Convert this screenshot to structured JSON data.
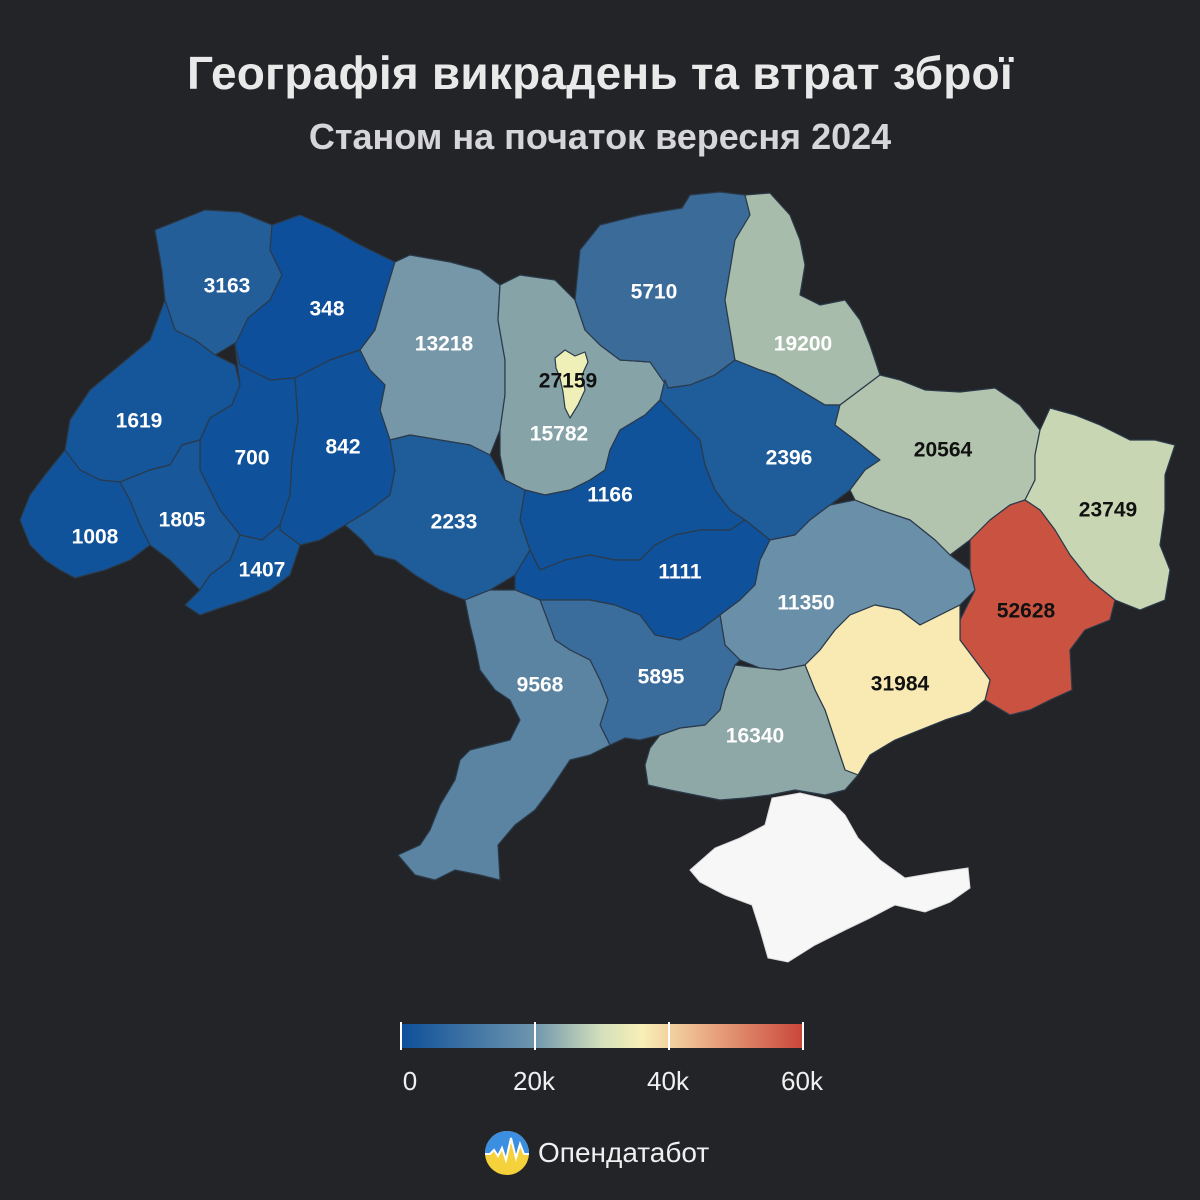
{
  "header": {
    "title": "Географія викрадень та втрат зброї",
    "subtitle": "Станом на початок вересня 2024"
  },
  "regions": [
    {
      "id": "volyn",
      "value": 3163,
      "label": "3163",
      "color": "#245e99"
    },
    {
      "id": "rivne",
      "value": 348,
      "label": "348",
      "color": "#0d4f9a"
    },
    {
      "id": "zhytomyr",
      "value": 13218,
      "label": "13218",
      "color": "#7597a8"
    },
    {
      "id": "kyiv-oblast",
      "value": 15782,
      "label": "15782",
      "color": "#86a3a8"
    },
    {
      "id": "kyiv-city",
      "value": 27159,
      "label": "27159",
      "color": "#eef0b8"
    },
    {
      "id": "chernihiv",
      "value": 5710,
      "label": "5710",
      "color": "#3a6b99"
    },
    {
      "id": "sumy",
      "value": 19200,
      "label": "19200",
      "color": "#a8bcab"
    },
    {
      "id": "lviv",
      "value": 1619,
      "label": "1619",
      "color": "#15559a"
    },
    {
      "id": "ternopil",
      "value": 700,
      "label": "700",
      "color": "#0f519a"
    },
    {
      "id": "khmelnytskyi",
      "value": 842,
      "label": "842",
      "color": "#0f519a"
    },
    {
      "id": "vinnytsia",
      "value": 2233,
      "label": "2233",
      "color": "#1f5c9a"
    },
    {
      "id": "cherkasy",
      "value": 1166,
      "label": "1166",
      "color": "#11539a"
    },
    {
      "id": "poltava",
      "value": 2396,
      "label": "2396",
      "color": "#1f5c9a"
    },
    {
      "id": "kharkiv",
      "value": 20564,
      "label": "20564",
      "color": "#b2c4ae"
    },
    {
      "id": "luhansk",
      "value": 23749,
      "label": "23749",
      "color": "#c8d6b4"
    },
    {
      "id": "zakarpattia",
      "value": 1008,
      "label": "1008",
      "color": "#11539a"
    },
    {
      "id": "ivano-frankivsk",
      "value": 1805,
      "label": "1805",
      "color": "#17579a"
    },
    {
      "id": "chernivtsi",
      "value": 1407,
      "label": "1407",
      "color": "#13559a"
    },
    {
      "id": "kirovohrad",
      "value": 1111,
      "label": "1111",
      "color": "#0f519a"
    },
    {
      "id": "dnipropetrovsk",
      "value": 11350,
      "label": "11350",
      "color": "#6a8fa9"
    },
    {
      "id": "donetsk",
      "value": 52628,
      "label": "52628",
      "color": "#c95241"
    },
    {
      "id": "zaporizhzhia",
      "value": 31984,
      "label": "31984",
      "color": "#f8eab2"
    },
    {
      "id": "kherson",
      "value": 16340,
      "label": "16340",
      "color": "#8ea8a8"
    },
    {
      "id": "mykolaiv",
      "value": 5895,
      "label": "5895",
      "color": "#3a6c9c"
    },
    {
      "id": "odesa",
      "value": 9568,
      "label": "9568",
      "color": "#5a84a2"
    }
  ],
  "legend": {
    "ticks": [
      {
        "value": 0,
        "label": "0"
      },
      {
        "value": 20000,
        "label": "20k"
      },
      {
        "value": 40000,
        "label": "40k"
      },
      {
        "value": 60000,
        "label": "60k"
      }
    ],
    "min": 0,
    "max": 60000
  },
  "brand": {
    "name": "Опендатабот"
  }
}
